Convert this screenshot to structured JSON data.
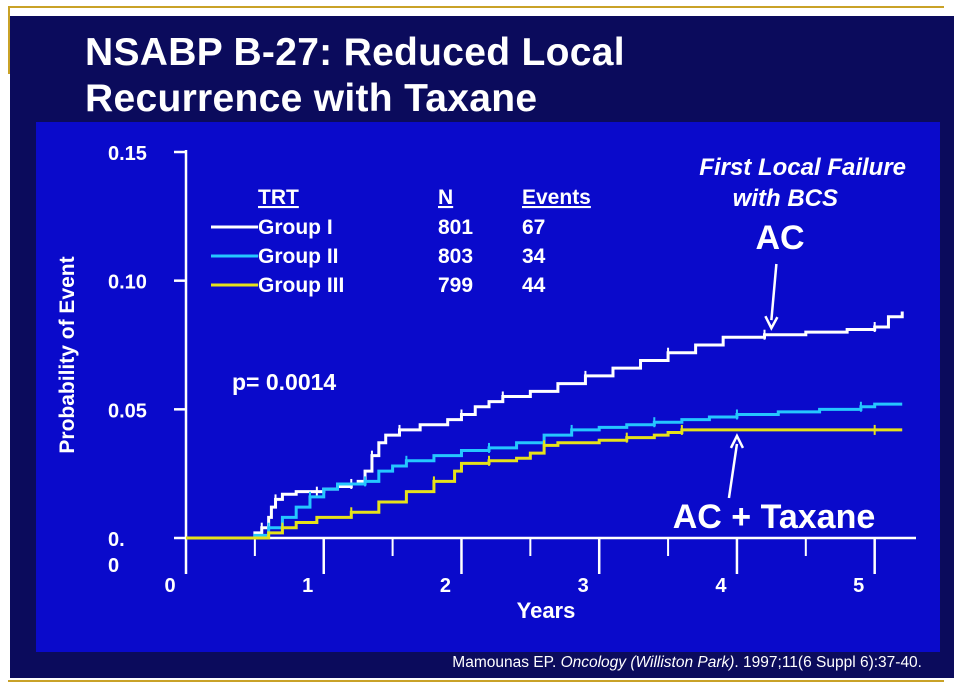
{
  "title_line1": "NSABP B-27: Reduced Local",
  "title_line2": "Recurrence with Taxane",
  "citation": {
    "author": "Mamounas EP. ",
    "journal": "Oncology (Williston Park)",
    "rest": ". 1997;11(6 Suppl 6):37-40."
  },
  "chart_data": {
    "type": "line",
    "subtitle_line1": "First Local Failure",
    "subtitle_line2": "with BCS",
    "xlabel": "Years",
    "ylabel": "Probability of Event",
    "xlim": [
      0,
      5.3
    ],
    "ylim": [
      0,
      0.15
    ],
    "x_ticks": [
      "0",
      "1",
      "2",
      "3",
      "4",
      "5"
    ],
    "y_ticks": [
      "0.15",
      "0.10",
      "0.05",
      "0."
    ],
    "y_tick_extra": "0",
    "pvalue": "p= 0.0014",
    "legend": {
      "headers": [
        "TRT",
        "N",
        "Events"
      ],
      "rows": [
        {
          "group": "Group I",
          "n": "801",
          "events": "67",
          "color": "#ffffff"
        },
        {
          "group": "Group II",
          "n": "803",
          "events": "34",
          "color": "#25c7ff"
        },
        {
          "group": "Group III",
          "n": "799",
          "events": "44",
          "color": "#e6e21a"
        }
      ]
    },
    "annotations": [
      {
        "text": "AC",
        "arrow_to": [
          4.25,
          0.08
        ]
      },
      {
        "text": "AC + Taxane",
        "arrow_to": [
          4.0,
          0.042
        ]
      }
    ],
    "series": [
      {
        "color": "#ffffff",
        "points": [
          [
            0,
            0
          ],
          [
            0.45,
            0
          ],
          [
            0.5,
            0.002
          ],
          [
            0.55,
            0.004
          ],
          [
            0.6,
            0.008
          ],
          [
            0.62,
            0.012
          ],
          [
            0.65,
            0.015
          ],
          [
            0.7,
            0.017
          ],
          [
            0.8,
            0.018
          ],
          [
            0.95,
            0.018
          ],
          [
            1.0,
            0.019
          ],
          [
            1.1,
            0.02
          ],
          [
            1.2,
            0.021
          ],
          [
            1.25,
            0.022
          ],
          [
            1.3,
            0.026
          ],
          [
            1.35,
            0.032
          ],
          [
            1.4,
            0.037
          ],
          [
            1.45,
            0.04
          ],
          [
            1.55,
            0.042
          ],
          [
            1.7,
            0.044
          ],
          [
            1.9,
            0.046
          ],
          [
            2.0,
            0.048
          ],
          [
            2.1,
            0.051
          ],
          [
            2.2,
            0.053
          ],
          [
            2.3,
            0.055
          ],
          [
            2.5,
            0.057
          ],
          [
            2.7,
            0.06
          ],
          [
            2.9,
            0.063
          ],
          [
            3.1,
            0.066
          ],
          [
            3.3,
            0.069
          ],
          [
            3.5,
            0.072
          ],
          [
            3.7,
            0.075
          ],
          [
            3.9,
            0.078
          ],
          [
            4.2,
            0.079
          ],
          [
            4.5,
            0.08
          ],
          [
            4.8,
            0.081
          ],
          [
            5.0,
            0.082
          ],
          [
            5.1,
            0.086
          ],
          [
            5.2,
            0.088
          ]
        ]
      },
      {
        "color": "#25c7ff",
        "points": [
          [
            0,
            0
          ],
          [
            0.45,
            0
          ],
          [
            0.5,
            0.001
          ],
          [
            0.6,
            0.004
          ],
          [
            0.7,
            0.008
          ],
          [
            0.8,
            0.012
          ],
          [
            0.9,
            0.016
          ],
          [
            1.0,
            0.019
          ],
          [
            1.1,
            0.021
          ],
          [
            1.3,
            0.022
          ],
          [
            1.4,
            0.026
          ],
          [
            1.5,
            0.028
          ],
          [
            1.6,
            0.03
          ],
          [
            1.8,
            0.032
          ],
          [
            2.0,
            0.034
          ],
          [
            2.2,
            0.035
          ],
          [
            2.4,
            0.037
          ],
          [
            2.6,
            0.04
          ],
          [
            2.8,
            0.042
          ],
          [
            3.0,
            0.043
          ],
          [
            3.2,
            0.044
          ],
          [
            3.4,
            0.045
          ],
          [
            3.6,
            0.046
          ],
          [
            3.8,
            0.047
          ],
          [
            4.0,
            0.048
          ],
          [
            4.3,
            0.049
          ],
          [
            4.6,
            0.05
          ],
          [
            4.9,
            0.051
          ],
          [
            5.0,
            0.052
          ],
          [
            5.2,
            0.052
          ]
        ]
      },
      {
        "color": "#e6e21a",
        "points": [
          [
            0,
            0
          ],
          [
            0.5,
            0
          ],
          [
            0.6,
            0.002
          ],
          [
            0.7,
            0.004
          ],
          [
            0.8,
            0.006
          ],
          [
            0.95,
            0.008
          ],
          [
            1.2,
            0.01
          ],
          [
            1.4,
            0.014
          ],
          [
            1.6,
            0.018
          ],
          [
            1.8,
            0.022
          ],
          [
            1.95,
            0.026
          ],
          [
            2.0,
            0.029
          ],
          [
            2.2,
            0.03
          ],
          [
            2.4,
            0.031
          ],
          [
            2.5,
            0.033
          ],
          [
            2.6,
            0.036
          ],
          [
            2.7,
            0.037
          ],
          [
            3.0,
            0.038
          ],
          [
            3.2,
            0.039
          ],
          [
            3.4,
            0.04
          ],
          [
            3.5,
            0.041
          ],
          [
            3.6,
            0.042
          ],
          [
            4.0,
            0.042
          ],
          [
            4.5,
            0.042
          ],
          [
            5.0,
            0.042
          ],
          [
            5.2,
            0.042
          ]
        ]
      }
    ]
  }
}
